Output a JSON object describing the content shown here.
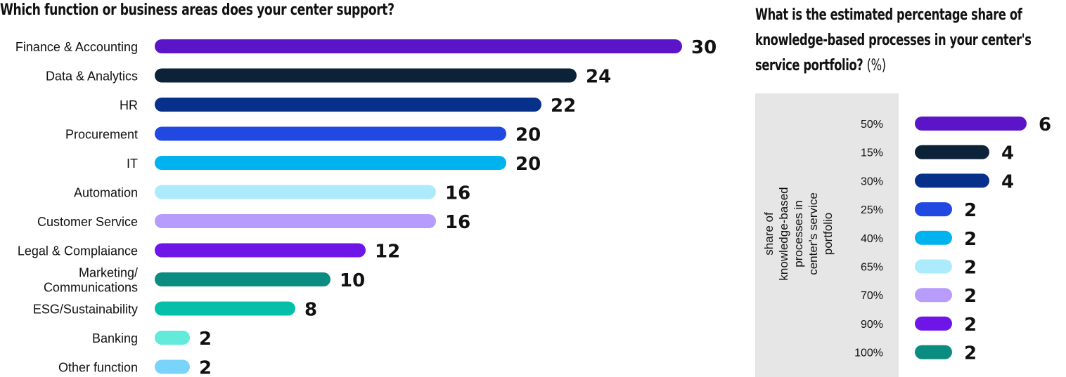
{
  "chart_data": [
    {
      "type": "bar",
      "orientation": "horizontal",
      "title": "Which function or business areas does your center support?",
      "categories": [
        "Finance & Accounting",
        "Data & Analytics",
        "HR",
        "Procurement",
        "IT",
        "Automation",
        "Customer Service",
        "Legal & Complaiance",
        "Marketing/ Communications",
        "ESG/Sustainability",
        "Banking",
        "Other function"
      ],
      "label_lines": [
        [
          "Finance & Accounting"
        ],
        [
          "Data & Analytics"
        ],
        [
          "HR"
        ],
        [
          "Procurement"
        ],
        [
          "IT"
        ],
        [
          "Automation"
        ],
        [
          "Customer Service"
        ],
        [
          "Legal & Complaiance"
        ],
        [
          "Marketing/",
          "Communications"
        ],
        [
          "ESG/Sustainability"
        ],
        [
          "Banking"
        ],
        [
          "Other function"
        ]
      ],
      "values": [
        30,
        24,
        22,
        20,
        20,
        16,
        16,
        12,
        10,
        8,
        2,
        2
      ],
      "colors": [
        "#5b14c8",
        "#0b2239",
        "#06308a",
        "#2148e0",
        "#00b2ee",
        "#acebfb",
        "#b79cfc",
        "#6e16e8",
        "#0b8c80",
        "#06bfa8",
        "#62eadb",
        "#79d3fb"
      ],
      "xlim": [
        0,
        30
      ]
    },
    {
      "type": "bar",
      "orientation": "horizontal",
      "title": "What is the estimated percentage share of knowledge-based processes in your center's service portfolio?",
      "title_unit": "(%)",
      "ylabel": "share of knowledge-based processes in center's service portfolio",
      "categories": [
        "50%",
        "15%",
        "30%",
        "25%",
        "40%",
        "65%",
        "70%",
        "90%",
        "100%"
      ],
      "values": [
        6,
        4,
        4,
        2,
        2,
        2,
        2,
        2,
        2
      ],
      "colors": [
        "#5b14c8",
        "#0b2239",
        "#06308a",
        "#2148e0",
        "#00b2ee",
        "#acebfb",
        "#b79cfc",
        "#6e16e8",
        "#0b8c80"
      ],
      "xlim": [
        0,
        6
      ]
    }
  ]
}
